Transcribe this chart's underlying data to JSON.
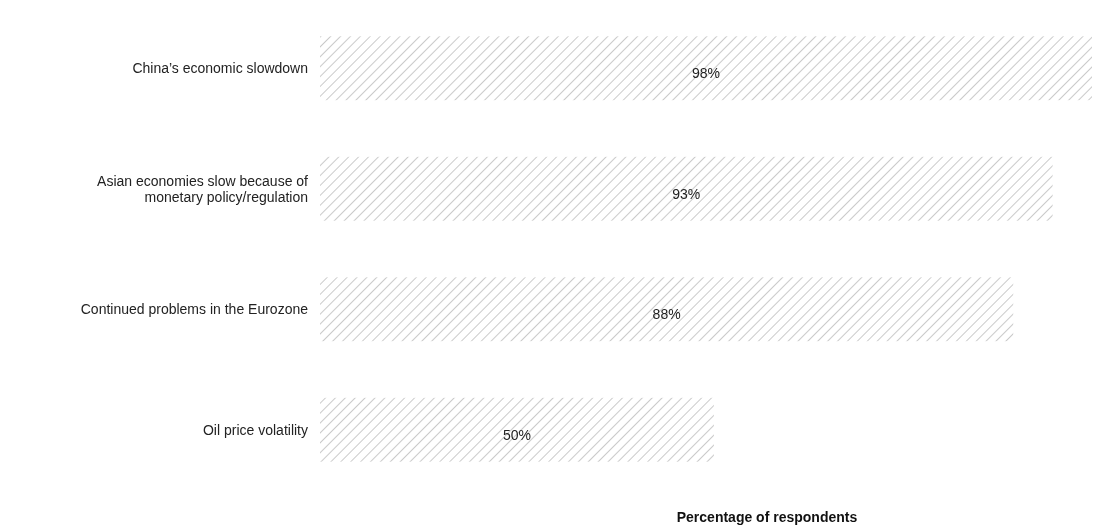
{
  "chart_data": {
    "type": "bar",
    "orientation": "horizontal",
    "xlabel": "Percentage of respondents",
    "categories": [
      "China’s economic slowdown",
      "Asian economies slow because of monetary policy/regulation",
      "Continued problems in the Eurozone",
      "Oil price volatility"
    ],
    "values": [
      98,
      93,
      88,
      50
    ],
    "value_labels": [
      "98%",
      "93%",
      "88%",
      "50%"
    ],
    "color": "#a6a6a6"
  }
}
